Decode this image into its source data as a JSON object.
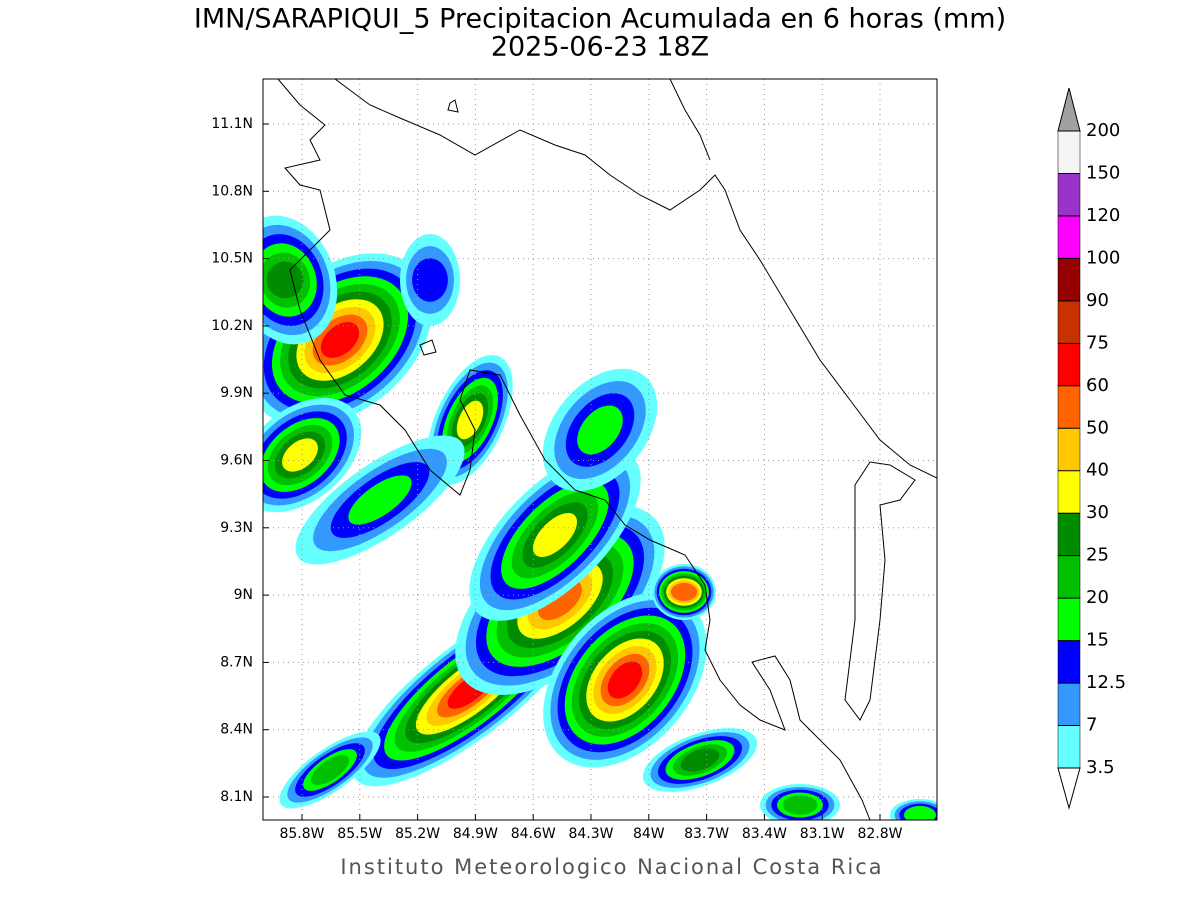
{
  "header": {
    "title": "IMN/SARAPIQUI_5 Precipitacion Acumulada en 6 horas (mm)",
    "subtitle": "2025-06-23 18Z"
  },
  "map": {
    "lon_ticks": [
      "85.8W",
      "85.5W",
      "85.2W",
      "84.9W",
      "84.6W",
      "84.3W",
      "84W",
      "83.7W",
      "83.4W",
      "83.1W",
      "82.8W"
    ],
    "lat_ticks": [
      "11.1N",
      "10.8N",
      "10.5N",
      "10.2N",
      "9.9N",
      "9.6N",
      "9.3N",
      "9N",
      "8.7N",
      "8.4N",
      "8.1N"
    ]
  },
  "colorbar": {
    "levels": [
      3.5,
      7,
      12.5,
      15,
      20,
      25,
      30,
      40,
      50,
      60,
      75,
      90,
      100,
      120,
      150,
      200
    ],
    "colors": [
      "#66ffff",
      "#3399ff",
      "#0000ff",
      "#00ff00",
      "#00c000",
      "#008c00",
      "#ffff00",
      "#ffc800",
      "#ff6400",
      "#ff0000",
      "#c83200",
      "#960000",
      "#ff00ff",
      "#9933cc",
      "#f5f5f5"
    ],
    "over_color": "#a0a0a0",
    "under_color": "#ffffff"
  },
  "footer": {
    "credit": "Instituto Meteorologico Nacional Costa Rica"
  }
}
